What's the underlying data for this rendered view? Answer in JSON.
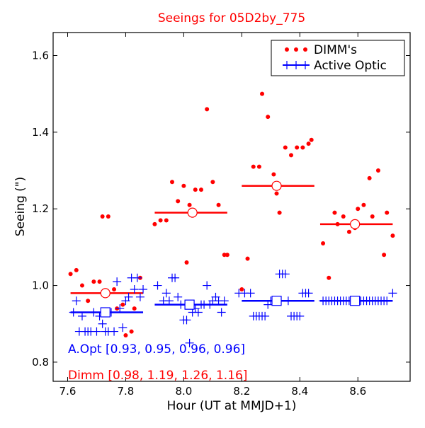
{
  "chart_data": {
    "type": "scatter",
    "title": "Seeings for 05D2by_775",
    "xlabel": "Hour (UT at MMJD+1)",
    "ylabel": "Seeing (\")",
    "xlim": [
      7.55,
      8.78
    ],
    "ylim": [
      0.75,
      1.66
    ],
    "x_ticks": [
      "7.6",
      "7.8",
      "8.0",
      "8.2",
      "8.4",
      "8.6"
    ],
    "y_ticks": [
      "0.8",
      "1.0",
      "1.2",
      "1.4",
      "1.6"
    ],
    "legend": {
      "position": "top-right",
      "entries": [
        "DIMM's",
        "Active Optic"
      ]
    },
    "colors": {
      "dimm": "#ff0000",
      "active_optic": "#0000ff",
      "title": "#ff0000"
    },
    "series": [
      {
        "name": "DIMM's",
        "marker": "dot",
        "points": [
          [
            7.61,
            1.03
          ],
          [
            7.63,
            1.04
          ],
          [
            7.65,
            1.0
          ],
          [
            7.67,
            0.96
          ],
          [
            7.69,
            1.01
          ],
          [
            7.71,
            1.01
          ],
          [
            7.72,
            1.18
          ],
          [
            7.74,
            1.18
          ],
          [
            7.76,
            0.99
          ],
          [
            7.77,
            0.94
          ],
          [
            7.79,
            0.95
          ],
          [
            7.8,
            0.87
          ],
          [
            7.82,
            0.88
          ],
          [
            7.83,
            0.94
          ],
          [
            7.85,
            1.02
          ],
          [
            7.9,
            1.16
          ],
          [
            7.92,
            1.17
          ],
          [
            7.94,
            1.17
          ],
          [
            7.96,
            1.27
          ],
          [
            7.98,
            1.22
          ],
          [
            8.0,
            1.26
          ],
          [
            8.01,
            1.06
          ],
          [
            8.02,
            1.21
          ],
          [
            8.04,
            1.25
          ],
          [
            8.06,
            1.25
          ],
          [
            8.08,
            1.46
          ],
          [
            8.1,
            1.27
          ],
          [
            8.12,
            1.21
          ],
          [
            8.14,
            1.08
          ],
          [
            8.15,
            1.08
          ],
          [
            8.2,
            0.99
          ],
          [
            8.22,
            1.07
          ],
          [
            8.24,
            1.31
          ],
          [
            8.26,
            1.31
          ],
          [
            8.27,
            1.5
          ],
          [
            8.29,
            1.44
          ],
          [
            8.31,
            1.29
          ],
          [
            8.32,
            1.24
          ],
          [
            8.33,
            1.19
          ],
          [
            8.35,
            1.36
          ],
          [
            8.37,
            1.34
          ],
          [
            8.39,
            1.36
          ],
          [
            8.41,
            1.36
          ],
          [
            8.43,
            1.37
          ],
          [
            8.44,
            1.38
          ],
          [
            8.48,
            1.11
          ],
          [
            8.5,
            1.02
          ],
          [
            8.52,
            1.19
          ],
          [
            8.53,
            1.16
          ],
          [
            8.55,
            1.18
          ],
          [
            8.57,
            1.14
          ],
          [
            8.59,
            1.15
          ],
          [
            8.6,
            1.2
          ],
          [
            8.62,
            1.21
          ],
          [
            8.64,
            1.28
          ],
          [
            8.65,
            1.18
          ],
          [
            8.67,
            1.3
          ],
          [
            8.69,
            1.08
          ],
          [
            8.7,
            1.19
          ],
          [
            8.72,
            1.13
          ]
        ]
      },
      {
        "name": "Active Optic",
        "marker": "plus",
        "points": [
          [
            7.62,
            0.93
          ],
          [
            7.63,
            0.96
          ],
          [
            7.64,
            0.88
          ],
          [
            7.65,
            0.92
          ],
          [
            7.66,
            0.88
          ],
          [
            7.67,
            0.88
          ],
          [
            7.68,
            0.88
          ],
          [
            7.69,
            0.93
          ],
          [
            7.7,
            0.88
          ],
          [
            7.71,
            0.92
          ],
          [
            7.72,
            0.9
          ],
          [
            7.73,
            0.88
          ],
          [
            7.74,
            0.88
          ],
          [
            7.75,
            0.93
          ],
          [
            7.76,
            0.88
          ],
          [
            7.77,
            1.01
          ],
          [
            7.78,
            0.94
          ],
          [
            7.79,
            0.89
          ],
          [
            7.8,
            0.96
          ],
          [
            7.81,
            0.97
          ],
          [
            7.82,
            1.02
          ],
          [
            7.83,
            0.99
          ],
          [
            7.84,
            1.02
          ],
          [
            7.85,
            0.97
          ],
          [
            7.86,
            0.99
          ],
          [
            7.91,
            1.0
          ],
          [
            7.93,
            0.96
          ],
          [
            7.94,
            0.98
          ],
          [
            7.95,
            0.96
          ],
          [
            7.96,
            1.02
          ],
          [
            7.97,
            1.02
          ],
          [
            7.98,
            0.97
          ],
          [
            7.99,
            0.95
          ],
          [
            8.0,
            0.91
          ],
          [
            8.01,
            0.91
          ],
          [
            8.02,
            0.85
          ],
          [
            8.03,
            0.93
          ],
          [
            8.04,
            0.94
          ],
          [
            8.05,
            0.93
          ],
          [
            8.06,
            0.95
          ],
          [
            8.07,
            0.95
          ],
          [
            8.08,
            1.0
          ],
          [
            8.09,
            0.95
          ],
          [
            8.1,
            0.96
          ],
          [
            8.11,
            0.97
          ],
          [
            8.12,
            0.96
          ],
          [
            8.13,
            0.93
          ],
          [
            8.14,
            0.96
          ],
          [
            8.19,
            0.98
          ],
          [
            8.21,
            0.98
          ],
          [
            8.23,
            0.98
          ],
          [
            8.24,
            0.92
          ],
          [
            8.25,
            0.92
          ],
          [
            8.26,
            0.92
          ],
          [
            8.27,
            0.92
          ],
          [
            8.28,
            0.92
          ],
          [
            8.29,
            0.95
          ],
          [
            8.3,
            0.96
          ],
          [
            8.31,
            0.96
          ],
          [
            8.32,
            0.96
          ],
          [
            8.33,
            1.03
          ],
          [
            8.34,
            1.03
          ],
          [
            8.35,
            1.03
          ],
          [
            8.36,
            0.96
          ],
          [
            8.37,
            0.92
          ],
          [
            8.38,
            0.92
          ],
          [
            8.39,
            0.92
          ],
          [
            8.4,
            0.92
          ],
          [
            8.41,
            0.98
          ],
          [
            8.42,
            0.98
          ],
          [
            8.43,
            0.98
          ],
          [
            8.48,
            0.96
          ],
          [
            8.49,
            0.96
          ],
          [
            8.5,
            0.96
          ],
          [
            8.51,
            0.96
          ],
          [
            8.52,
            0.96
          ],
          [
            8.53,
            0.96
          ],
          [
            8.54,
            0.96
          ],
          [
            8.55,
            0.96
          ],
          [
            8.56,
            0.96
          ],
          [
            8.57,
            0.96
          ],
          [
            8.58,
            0.96
          ],
          [
            8.6,
            0.96
          ],
          [
            8.61,
            0.96
          ],
          [
            8.62,
            0.96
          ],
          [
            8.63,
            0.96
          ],
          [
            8.64,
            0.96
          ],
          [
            8.65,
            0.96
          ],
          [
            8.66,
            0.96
          ],
          [
            8.67,
            0.96
          ],
          [
            8.68,
            0.96
          ],
          [
            8.69,
            0.96
          ],
          [
            8.7,
            0.96
          ],
          [
            8.72,
            0.98
          ]
        ]
      },
      {
        "name": "DIMM mean",
        "marker": "circle",
        "points": [
          [
            7.73,
            0.98
          ],
          [
            8.03,
            1.19
          ],
          [
            8.32,
            1.26
          ],
          [
            8.59,
            1.16
          ]
        ]
      },
      {
        "name": "A.Opt mean",
        "marker": "square",
        "points": [
          [
            7.73,
            0.93
          ],
          [
            8.02,
            0.95
          ],
          [
            8.32,
            0.96
          ],
          [
            8.59,
            0.96
          ]
        ]
      }
    ],
    "segments": {
      "dimm": [
        {
          "x": [
            7.61,
            7.86
          ],
          "y": 0.98
        },
        {
          "x": [
            7.9,
            8.15
          ],
          "y": 1.19
        },
        {
          "x": [
            8.2,
            8.45
          ],
          "y": 1.26
        },
        {
          "x": [
            8.47,
            8.72
          ],
          "y": 1.16
        }
      ],
      "active_optic": [
        {
          "x": [
            7.61,
            7.86
          ],
          "y": 0.93
        },
        {
          "x": [
            7.9,
            8.15
          ],
          "y": 0.95
        },
        {
          "x": [
            8.2,
            8.45
          ],
          "y": 0.96
        },
        {
          "x": [
            8.47,
            8.72
          ],
          "y": 0.96
        }
      ]
    },
    "annotations": {
      "aopt": "A.Opt [0.93, 0.95, 0.96, 0.96]",
      "dimm": "Dimm [0.98, 1.19, 1.26, 1.16]"
    }
  }
}
